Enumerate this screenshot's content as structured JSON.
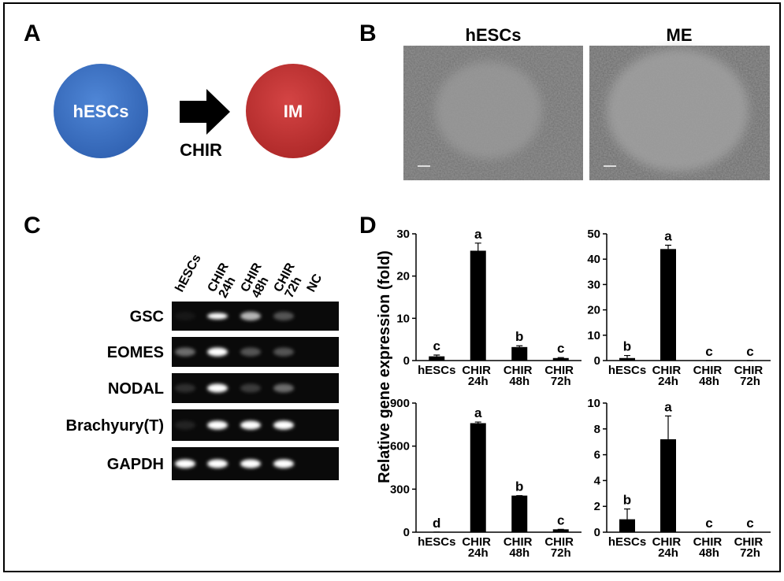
{
  "panel_a": {
    "label": "A",
    "source": "hESCs",
    "target": "IM",
    "arrow_label": "CHIR"
  },
  "panel_b": {
    "label": "B",
    "images": [
      {
        "caption": "hESCs"
      },
      {
        "caption": "ME"
      }
    ]
  },
  "panel_c": {
    "label": "C",
    "lanes": [
      "hESCs",
      "CHIR 24h",
      "CHIR 48h",
      "CHIR 72h",
      "NC"
    ],
    "genes": [
      "GSC",
      "EOMES",
      "NODAL",
      "Brachyury(T)",
      "GAPDH"
    ]
  },
  "panel_d": {
    "label": "D",
    "y_label": "Relative gene expression (fold)"
  },
  "chart_data": [
    {
      "type": "bar",
      "categories": [
        "hESCs",
        "CHIR 24h",
        "CHIR 48h",
        "CHIR 72h"
      ],
      "values": [
        1,
        26,
        3.2,
        0.6
      ],
      "errors": [
        0.3,
        1.8,
        0.3,
        0.1
      ],
      "annotations": [
        "c",
        "a",
        "b",
        "c"
      ],
      "color": "#000000",
      "ylim": [
        0,
        30
      ],
      "yticks": [
        0,
        10,
        20,
        30
      ]
    },
    {
      "type": "bar",
      "categories": [
        "hESCs",
        "CHIR 24h",
        "CHIR 48h",
        "CHIR 72h"
      ],
      "values": [
        1,
        44,
        0,
        0
      ],
      "errors": [
        1,
        1.5,
        0,
        0
      ],
      "annotations": [
        "b",
        "a",
        "c",
        "c"
      ],
      "color": "#000000",
      "ylim": [
        0,
        50
      ],
      "yticks": [
        0,
        10,
        20,
        30,
        40,
        50
      ]
    },
    {
      "type": "bar",
      "categories": [
        "hESCs",
        "CHIR 24h",
        "CHIR 48h",
        "CHIR 72h"
      ],
      "values": [
        1,
        760,
        255,
        20
      ],
      "errors": [
        0,
        8,
        0,
        0
      ],
      "annotations": [
        "d",
        "a",
        "b",
        "c"
      ],
      "color": "#000000",
      "ylim": [
        0,
        900
      ],
      "yticks": [
        0,
        300,
        600,
        900
      ]
    },
    {
      "type": "bar",
      "categories": [
        "hESCs",
        "CHIR 24h",
        "CHIR 48h",
        "CHIR 72h"
      ],
      "values": [
        1,
        7.2,
        0,
        0
      ],
      "errors": [
        0.8,
        1.8,
        0,
        0
      ],
      "annotations": [
        "b",
        "a",
        "c",
        "c"
      ],
      "color": "#000000",
      "ylim": [
        0,
        10
      ],
      "yticks": [
        0,
        2,
        4,
        6,
        8,
        10
      ]
    }
  ]
}
